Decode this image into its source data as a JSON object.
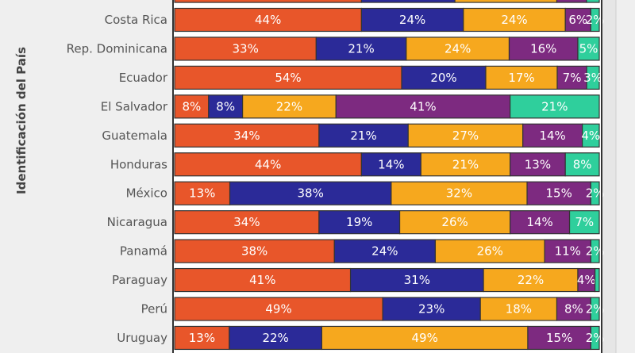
{
  "chart_data": {
    "type": "bar",
    "orientation": "horizontal",
    "stacked": "percent",
    "ylabel": "Identificación del País",
    "xlabel": "",
    "categories": [
      "",
      "Costa Rica",
      "Rep. Dominicana",
      "Ecuador",
      "El Salvador",
      "Guatemala",
      "Honduras",
      "México",
      "Nicaragua",
      "Panamá",
      "Paraguay",
      "Perú",
      "Uruguay"
    ],
    "series": [
      {
        "color": "#e8562a",
        "values": [
          44,
          44,
          33,
          54,
          8,
          34,
          44,
          13,
          34,
          38,
          41,
          49,
          13
        ]
      },
      {
        "color": "#2b2a98",
        "values": [
          22,
          24,
          21,
          20,
          8,
          21,
          14,
          38,
          19,
          24,
          31,
          23,
          22
        ]
      },
      {
        "color": "#f6a81e",
        "values": [
          24,
          24,
          24,
          17,
          22,
          27,
          21,
          32,
          26,
          26,
          22,
          18,
          49
        ]
      },
      {
        "color": "#7d2a80",
        "values": [
          7,
          6,
          16,
          7,
          41,
          14,
          13,
          15,
          14,
          11,
          4,
          8,
          15
        ]
      },
      {
        "color": "#2fcf9c",
        "values": [
          3,
          2,
          5,
          3,
          21,
          4,
          8,
          2,
          7,
          2,
          1,
          2,
          2
        ]
      }
    ],
    "xlim": [
      0,
      100
    ],
    "label_format": "{v}%",
    "grid": false,
    "legend": "none"
  }
}
